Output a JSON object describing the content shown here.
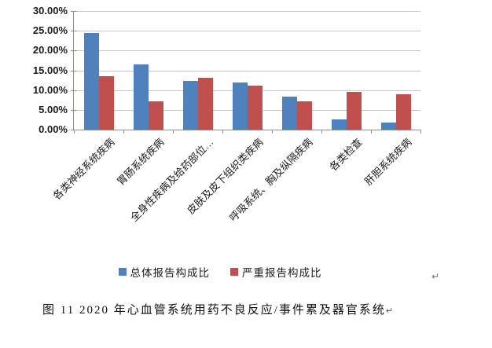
{
  "chart_data": {
    "type": "bar",
    "title": "",
    "categories": [
      "各类神经系统疾病",
      "胃肠系统疾病",
      "全身性疾病及给药部位…",
      "皮肤及皮下组织类疾病",
      "呼吸系统、胸及纵隔疾病",
      "各类检查",
      "肝胆系统疾病"
    ],
    "series": [
      {
        "name": "总体报告构成比",
        "color": "#4F81BD",
        "values": [
          24.5,
          16.4,
          12.3,
          12.0,
          8.4,
          2.5,
          1.8
        ]
      },
      {
        "name": "严重报告构成比",
        "color": "#C0504D",
        "values": [
          13.5,
          7.2,
          13.1,
          11.2,
          7.1,
          9.5,
          9.0
        ]
      }
    ],
    "ylim": [
      0,
      30
    ],
    "ytick_step": 5,
    "ytick_labels": [
      "30.00%",
      "25.00%",
      "20.00%",
      "15.00%",
      "10.00%",
      "5.00%",
      "0.00%"
    ],
    "grid": true,
    "legend_position": "bottom",
    "gridline_color": "#C6C6C6",
    "axis_color": "#8E8E8E"
  },
  "marks": {
    "after_legend_paragraph_mark": "↵",
    "caption_paragraph_mark": "↵"
  },
  "caption": {
    "text": "图 11  2020 年心血管系统用药不良反应/事件累及器官系统"
  }
}
